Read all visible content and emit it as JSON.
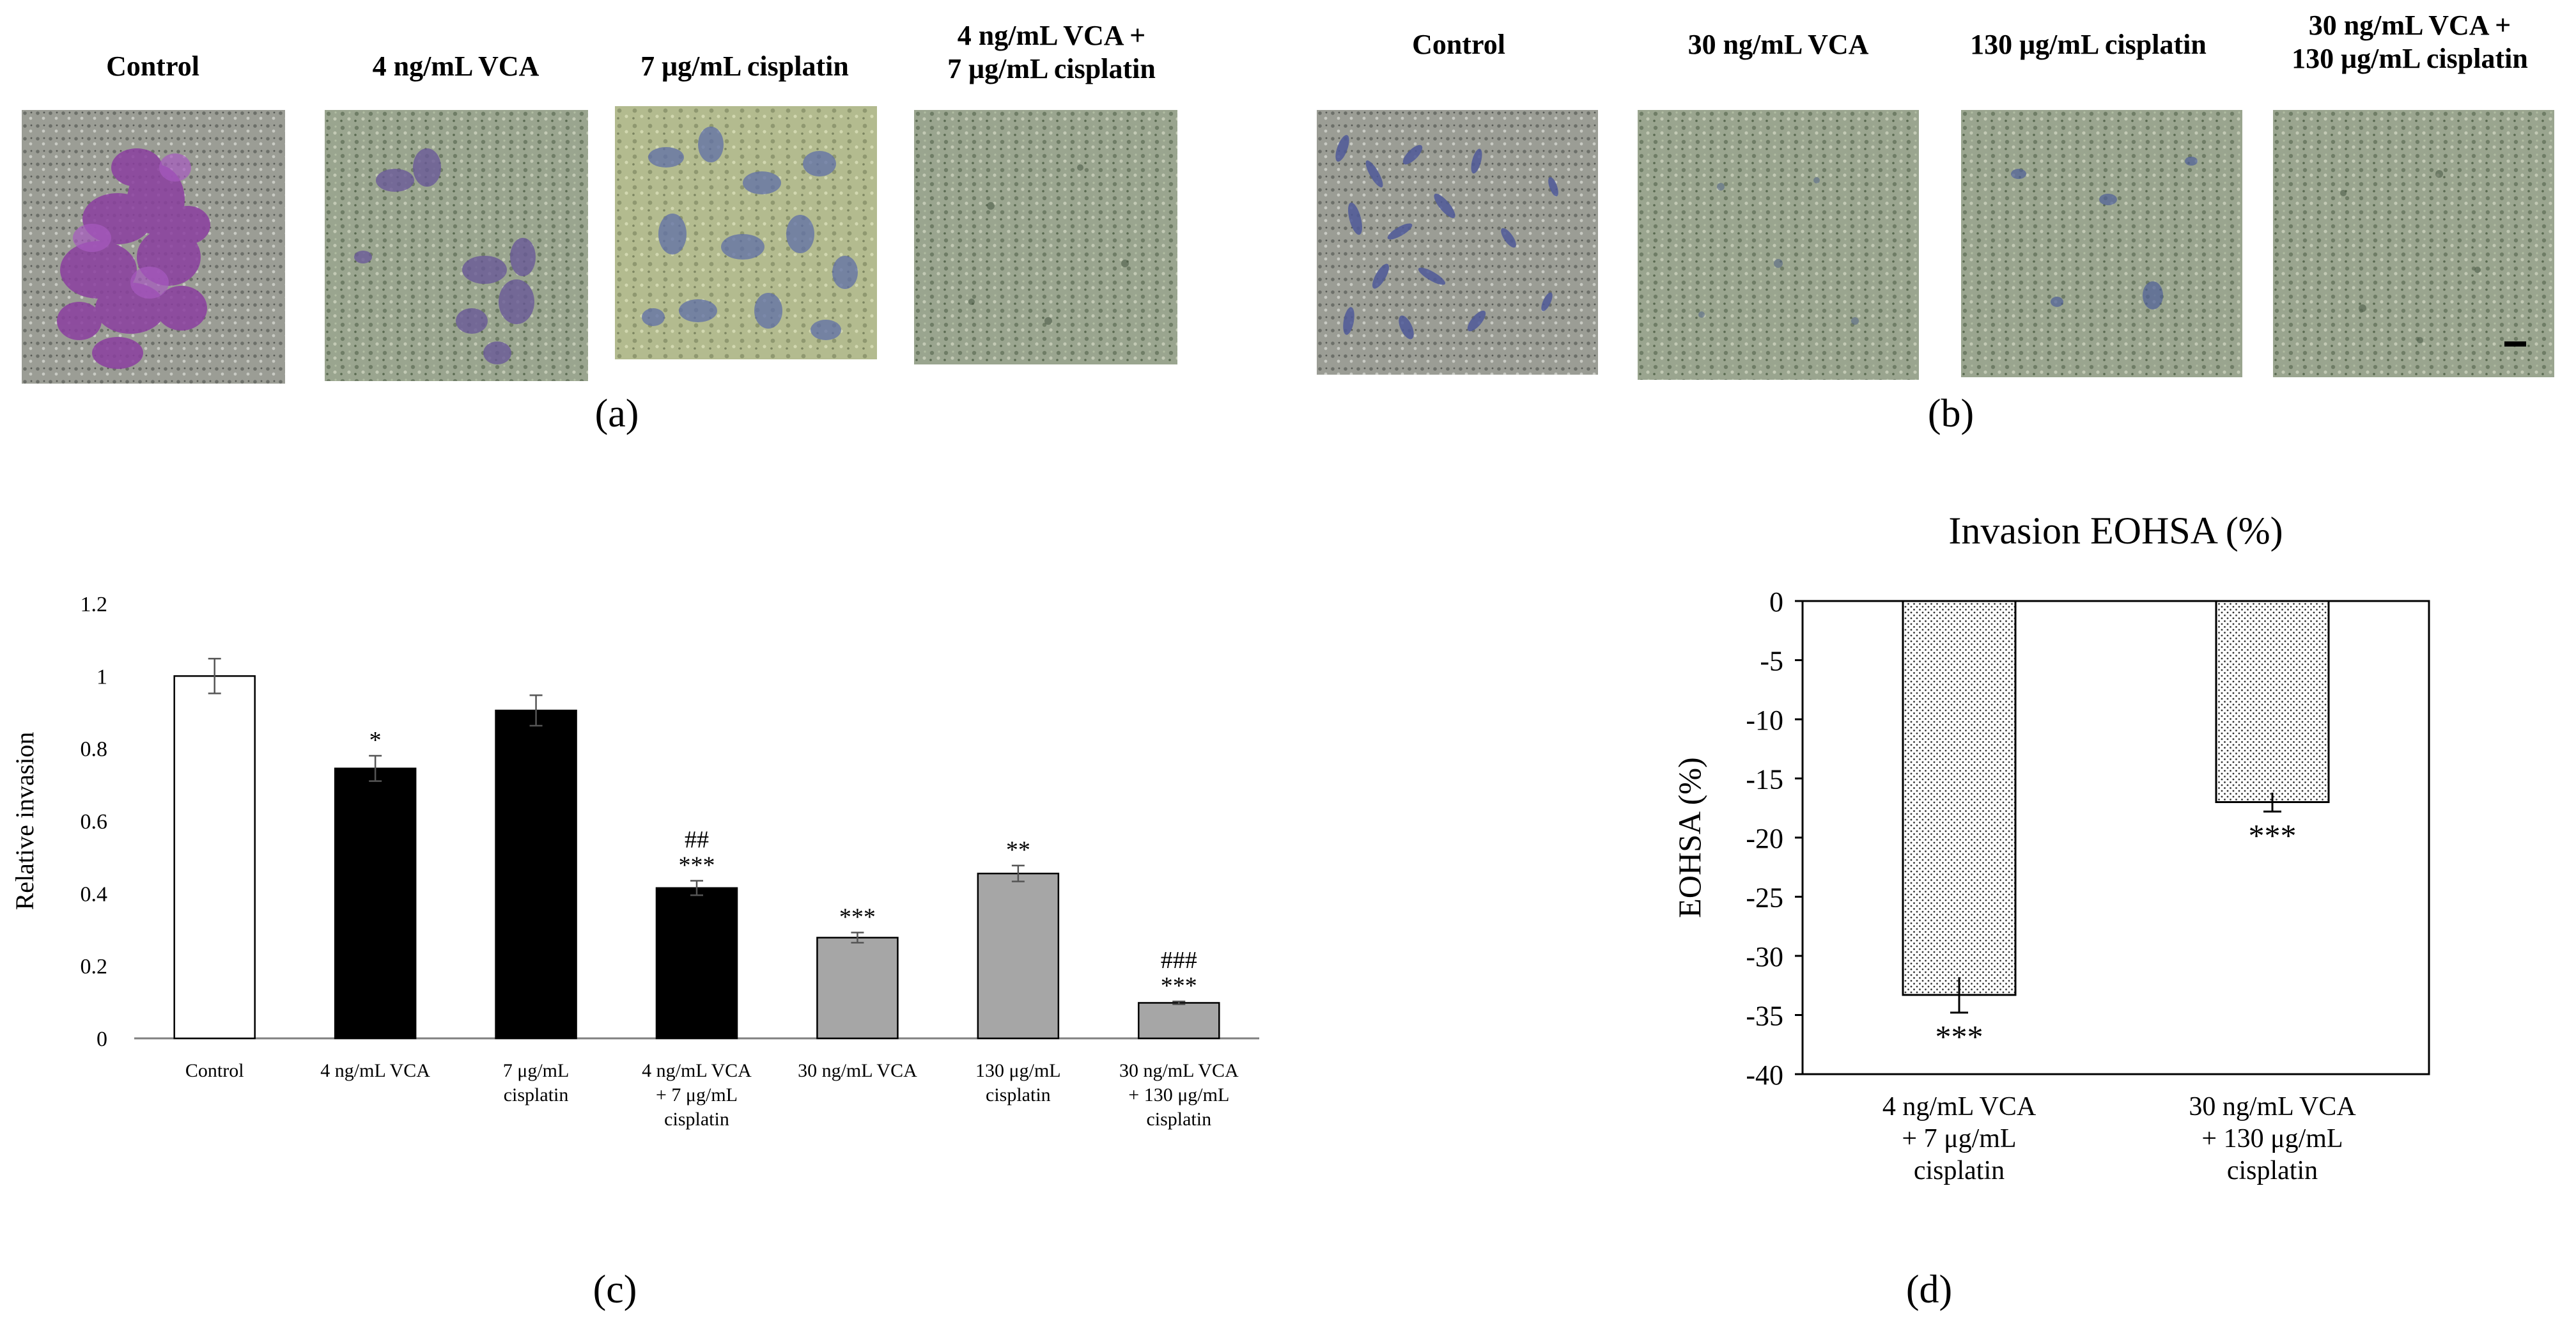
{
  "panel_a": {
    "label": "(a)",
    "headers": [
      {
        "lines": [
          "Control"
        ]
      },
      {
        "lines": [
          "4 ng/mL VCA"
        ]
      },
      {
        "lines": [
          "7 μg/mL cisplatin"
        ]
      },
      {
        "lines": [
          "4 ng/mL VCA +",
          "7 μg/mL cisplatin"
        ]
      }
    ]
  },
  "panel_b": {
    "label": "(b)",
    "headers": [
      {
        "lines": [
          "Control"
        ]
      },
      {
        "lines": [
          "30 ng/mL VCA"
        ]
      },
      {
        "lines": [
          "130 μg/mL cisplatin"
        ]
      },
      {
        "lines": [
          "30 ng/mL VCA +",
          "130 μg/mL cisplatin"
        ]
      }
    ]
  },
  "panel_c_label": "(c)",
  "panel_d_label": "(d)",
  "colors": {
    "white_bar": "#ffffff",
    "black_bar": "#000000",
    "gray_bar": "#a6a6a6",
    "axis": "#7f7f7f"
  },
  "chart_data": [
    {
      "id": "c",
      "type": "bar",
      "title": "",
      "xlabel": "",
      "ylabel": "Relative invasion",
      "ylim": [
        0,
        1.2
      ],
      "yticks": [
        0,
        0.2,
        0.4,
        0.6,
        0.8,
        1,
        1.2
      ],
      "ytick_labels": [
        "0",
        "0.2",
        "0.4",
        "0.6",
        "0.8",
        "1",
        "1.2"
      ],
      "categories": [
        [
          "Control"
        ],
        [
          "4 ng/mL VCA"
        ],
        [
          "7 μg/mL",
          "cisplatin"
        ],
        [
          "4 ng/mL VCA",
          "+ 7 μg/mL",
          "cisplatin"
        ],
        [
          "30 ng/mL VCA"
        ],
        [
          "130 μg/mL",
          "cisplatin"
        ],
        [
          "30 ng/mL VCA",
          "+ 130 μg/mL",
          "cisplatin"
        ]
      ],
      "values": [
        1.0,
        0.745,
        0.905,
        0.415,
        0.278,
        0.455,
        0.098
      ],
      "errors": [
        0.048,
        0.035,
        0.042,
        0.02,
        0.014,
        0.022,
        0.004
      ],
      "bar_colors": [
        "#ffffff",
        "#000000",
        "#000000",
        "#000000",
        "#a6a6a6",
        "#a6a6a6",
        "#a6a6a6"
      ],
      "annotations": [
        [],
        [
          "*"
        ],
        [],
        [
          "##",
          "***"
        ],
        [
          "***"
        ],
        [
          "**"
        ],
        [
          "###",
          "***"
        ]
      ]
    },
    {
      "id": "d",
      "type": "bar",
      "title": "Invasion EOHSA (%)",
      "xlabel": "",
      "ylabel": "EOHSA (%)",
      "ylim": [
        -40,
        0
      ],
      "yticks": [
        0,
        -5,
        -10,
        -15,
        -20,
        -25,
        -30,
        -35,
        -40
      ],
      "ytick_labels": [
        "0",
        "-5",
        "-10",
        "-15",
        "-20",
        "-25",
        "-30",
        "-35",
        "-40"
      ],
      "categories": [
        [
          "4 ng/mL VCA",
          "+ 7 μg/mL",
          "cisplatin"
        ],
        [
          "30 ng/mL VCA",
          "+ 130 μg/mL",
          "cisplatin"
        ]
      ],
      "values": [
        -33.3,
        -17.0
      ],
      "errors": [
        1.5,
        0.8
      ],
      "fill": "dotted",
      "annotations": [
        [
          "***"
        ],
        [
          "***"
        ]
      ]
    }
  ]
}
